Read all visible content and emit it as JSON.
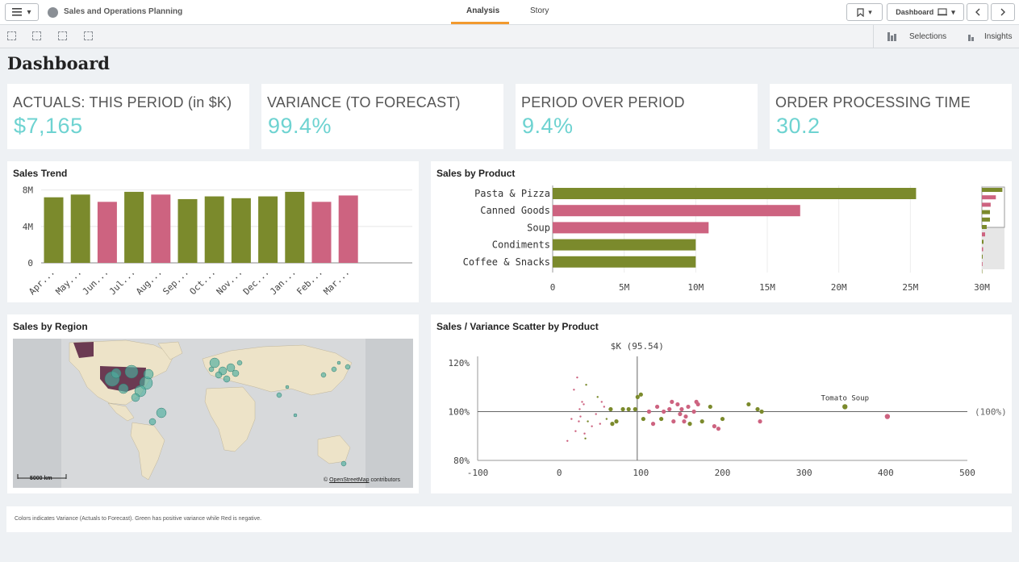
{
  "app": {
    "title": "Sales and Operations Planning",
    "tabs": [
      "Analysis",
      "Story"
    ],
    "sheet_label": "Dashboard",
    "selections_label": "Selections",
    "insights_label": "Insights"
  },
  "page_title": "Dashboard",
  "kpis": [
    {
      "label": "ACTUALS: THIS PERIOD (in $K)",
      "value": "$7,165"
    },
    {
      "label": "VARIANCE (TO FORECAST)",
      "value": "99.4%"
    },
    {
      "label": "PERIOD OVER PERIOD",
      "value": "9.4%"
    },
    {
      "label": "ORDER PROCESSING TIME",
      "value": "30.2"
    }
  ],
  "colors": {
    "positive": "#7b8a2c",
    "negative": "#cd6380",
    "kpi": "#6ed3d1",
    "map_points": "#4dae9e"
  },
  "sales_trend": {
    "title": "Sales Trend",
    "chart_data": {
      "type": "bar",
      "categories": [
        "Apr...",
        "May...",
        "Jun...",
        "Jul...",
        "Aug...",
        "Sep...",
        "Oct...",
        "Nov...",
        "Dec...",
        "Jan...",
        "Feb...",
        "Mar..."
      ],
      "values": [
        7.2,
        7.5,
        6.7,
        7.8,
        7.5,
        7.0,
        7.3,
        7.1,
        7.3,
        7.8,
        6.7,
        7.4
      ],
      "variance_sign": [
        "pos",
        "pos",
        "neg",
        "pos",
        "neg",
        "pos",
        "pos",
        "pos",
        "pos",
        "pos",
        "neg",
        "neg"
      ],
      "y_ticks": [
        "0",
        "4M",
        "8M"
      ],
      "ylim": [
        0,
        8.5
      ],
      "unit": "M",
      "grid": true
    }
  },
  "sales_by_product": {
    "title": "Sales by Product",
    "chart_data": {
      "type": "bar",
      "orientation": "horizontal",
      "categories": [
        "Pasta & Pizza",
        "Canned Goods",
        "Soup",
        "Condiments",
        "Coffee & Snacks"
      ],
      "values": [
        25.4,
        17.3,
        10.9,
        10.0,
        10.0
      ],
      "variance_sign": [
        "pos",
        "neg",
        "neg",
        "pos",
        "pos"
      ],
      "x_ticks": [
        "0",
        "5M",
        "10M",
        "15M",
        "20M",
        "25M",
        "30M"
      ],
      "xlim": [
        0,
        30
      ],
      "unit": "M",
      "grid": true
    }
  },
  "sales_by_region": {
    "title": "Sales by Region",
    "scale_label": "5000 km",
    "attribution_prefix": "© ",
    "attribution_link": "OpenStreetMap",
    "attribution_suffix": " contributors"
  },
  "scatter": {
    "title": "Sales / Variance Scatter by Product",
    "chart_data": {
      "type": "scatter",
      "xlim": [
        -100,
        500
      ],
      "ylim": [
        80,
        120
      ],
      "x_ticks": [
        "-100",
        "0",
        "100",
        "200",
        "300",
        "400",
        "500"
      ],
      "y_ticks": [
        "80%",
        "100%",
        "120%"
      ],
      "ref_x_label": "$K (95.54)",
      "ref_y_label": "(100%)",
      "annotation": "Tomato Soup",
      "points": [
        {
          "x": 18,
          "y": 109,
          "s": "neg",
          "r": 1
        },
        {
          "x": 22,
          "y": 114,
          "s": "neg",
          "r": 1
        },
        {
          "x": 25,
          "y": 101,
          "s": "neg",
          "r": 1
        },
        {
          "x": 15,
          "y": 97,
          "s": "neg",
          "r": 1
        },
        {
          "x": 28,
          "y": 104,
          "s": "neg",
          "r": 1
        },
        {
          "x": 20,
          "y": 92,
          "s": "neg",
          "r": 1
        },
        {
          "x": 10,
          "y": 88,
          "s": "neg",
          "r": 1
        },
        {
          "x": 24,
          "y": 96,
          "s": "neg",
          "r": 1
        },
        {
          "x": 30,
          "y": 103,
          "s": "neg",
          "r": 1
        },
        {
          "x": 26,
          "y": 98,
          "s": "neg",
          "r": 1
        },
        {
          "x": 33,
          "y": 111,
          "s": "pos",
          "r": 1
        },
        {
          "x": 35,
          "y": 96,
          "s": "pos",
          "r": 1
        },
        {
          "x": 31,
          "y": 91,
          "s": "neg",
          "r": 1
        },
        {
          "x": 40,
          "y": 94,
          "s": "neg",
          "r": 1
        },
        {
          "x": 32,
          "y": 89,
          "s": "pos",
          "r": 1
        },
        {
          "x": 45,
          "y": 99,
          "s": "neg",
          "r": 1
        },
        {
          "x": 47,
          "y": 106,
          "s": "pos",
          "r": 1
        },
        {
          "x": 50,
          "y": 95,
          "s": "neg",
          "r": 1
        },
        {
          "x": 52,
          "y": 104,
          "s": "neg",
          "r": 1
        },
        {
          "x": 55,
          "y": 102,
          "s": "neg",
          "r": 1
        },
        {
          "x": 58,
          "y": 97,
          "s": "pos",
          "r": 1
        },
        {
          "x": 63,
          "y": 101,
          "s": "pos",
          "r": 1
        },
        {
          "x": 65,
          "y": 95,
          "s": "pos",
          "r": 1
        },
        {
          "x": 70,
          "y": 96,
          "s": "pos",
          "r": 1
        },
        {
          "x": 78,
          "y": 101,
          "s": "pos",
          "r": 1
        },
        {
          "x": 85,
          "y": 101,
          "s": "pos",
          "r": 1
        },
        {
          "x": 93,
          "y": 101,
          "s": "pos",
          "r": 1
        },
        {
          "x": 96,
          "y": 106,
          "s": "pos",
          "r": 1
        },
        {
          "x": 100,
          "y": 107,
          "s": "pos",
          "r": 1
        },
        {
          "x": 103,
          "y": 97,
          "s": "pos",
          "r": 1
        },
        {
          "x": 110,
          "y": 100,
          "s": "neg",
          "r": 1
        },
        {
          "x": 115,
          "y": 95,
          "s": "neg",
          "r": 1
        },
        {
          "x": 120,
          "y": 102,
          "s": "neg",
          "r": 1
        },
        {
          "x": 125,
          "y": 97,
          "s": "pos",
          "r": 1
        },
        {
          "x": 128,
          "y": 100,
          "s": "neg",
          "r": 1
        },
        {
          "x": 135,
          "y": 101,
          "s": "neg",
          "r": 1
        },
        {
          "x": 138,
          "y": 104,
          "s": "neg",
          "r": 1
        },
        {
          "x": 140,
          "y": 96,
          "s": "neg",
          "r": 1
        },
        {
          "x": 145,
          "y": 103,
          "s": "neg",
          "r": 1
        },
        {
          "x": 148,
          "y": 99,
          "s": "neg",
          "r": 1
        },
        {
          "x": 150,
          "y": 101,
          "s": "neg",
          "r": 1
        },
        {
          "x": 153,
          "y": 96,
          "s": "neg",
          "r": 1
        },
        {
          "x": 155,
          "y": 98,
          "s": "neg",
          "r": 1
        },
        {
          "x": 158,
          "y": 102,
          "s": "neg",
          "r": 1
        },
        {
          "x": 160,
          "y": 95,
          "s": "pos",
          "r": 1
        },
        {
          "x": 165,
          "y": 100,
          "s": "neg",
          "r": 1
        },
        {
          "x": 168,
          "y": 104,
          "s": "neg",
          "r": 1
        },
        {
          "x": 170,
          "y": 103,
          "s": "neg",
          "r": 1
        },
        {
          "x": 175,
          "y": 96,
          "s": "pos",
          "r": 1
        },
        {
          "x": 185,
          "y": 102,
          "s": "pos",
          "r": 1
        },
        {
          "x": 190,
          "y": 94,
          "s": "neg",
          "r": 1
        },
        {
          "x": 195,
          "y": 93,
          "s": "neg",
          "r": 1
        },
        {
          "x": 200,
          "y": 97,
          "s": "pos",
          "r": 1
        },
        {
          "x": 232,
          "y": 103,
          "s": "pos",
          "r": 1
        },
        {
          "x": 243,
          "y": 101,
          "s": "pos",
          "r": 1
        },
        {
          "x": 246,
          "y": 96,
          "s": "neg",
          "r": 1
        },
        {
          "x": 248,
          "y": 100,
          "s": "pos",
          "r": 1
        },
        {
          "x": 350,
          "y": 102,
          "s": "pos",
          "r": 1
        },
        {
          "x": 402,
          "y": 98,
          "s": "neg",
          "r": 1
        }
      ]
    }
  },
  "footer_note": "Colors indicates Variance (Actuals to Forecast). Green has positive variance while Red is negative."
}
